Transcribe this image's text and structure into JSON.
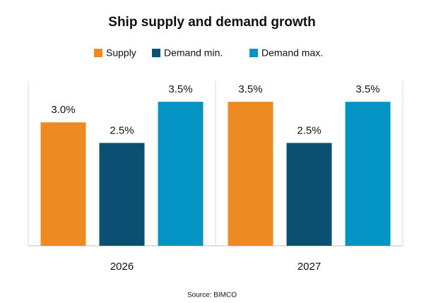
{
  "chart_data": {
    "type": "bar",
    "title": "Ship supply and demand growth",
    "categories": [
      "2026",
      "2027"
    ],
    "series": [
      {
        "name": "Supply",
        "color": "#ee8a22",
        "values": [
          3.0,
          3.5
        ],
        "value_labels": [
          "3.0%",
          "3.5%"
        ]
      },
      {
        "name": "Demand min.",
        "color": "#0b4f72",
        "values": [
          2.5,
          2.5
        ],
        "value_labels": [
          "2.5%",
          "2.5%"
        ]
      },
      {
        "name": "Demand max.",
        "color": "#0494c3",
        "values": [
          3.5,
          3.5
        ],
        "value_labels": [
          "3.5%",
          "3.5%"
        ]
      }
    ],
    "ylim": [
      0,
      4
    ],
    "source": "Source: BIMCO"
  }
}
